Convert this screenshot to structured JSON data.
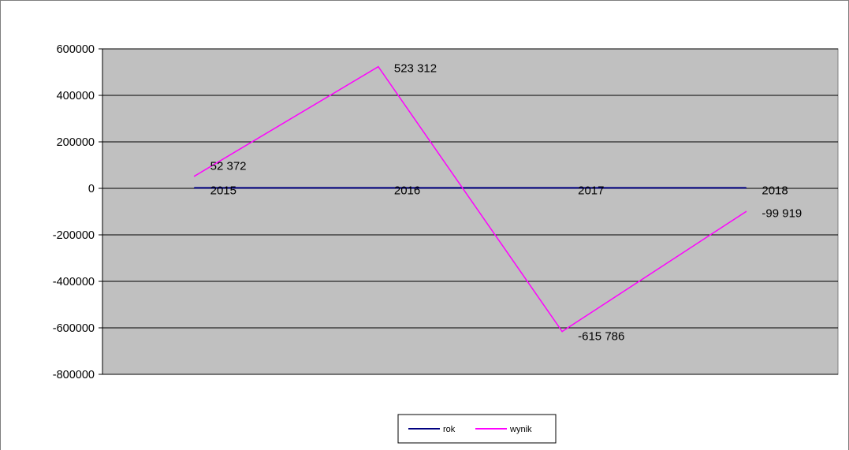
{
  "chart_data": {
    "type": "line",
    "categories": [
      "2015",
      "2016",
      "2017",
      "2018"
    ],
    "series": [
      {
        "name": "rok",
        "values": [
          2015,
          2016,
          2017,
          2018
        ],
        "color": "#000080",
        "labels": [
          "2015",
          "2016",
          "2017",
          "2018"
        ]
      },
      {
        "name": "wynik",
        "values": [
          52372,
          523312,
          -615786,
          -99919
        ],
        "color": "#ff00ff",
        "labels": [
          "52 372",
          "523 312",
          "-615 786",
          "-99 919"
        ]
      }
    ],
    "yticks": [
      "600000",
      "400000",
      "200000",
      "0",
      "-200000",
      "-400000",
      "-600000",
      "-800000"
    ],
    "ylim": [
      -800000,
      600000
    ],
    "plot_background": "#c0c0c0",
    "grid": true,
    "legend_position": "bottom-center"
  }
}
